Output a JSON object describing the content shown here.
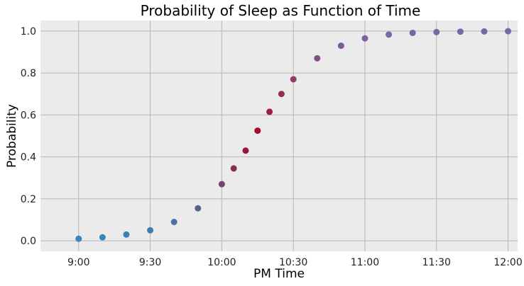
{
  "chart_data": {
    "type": "scatter",
    "title": "Probability of Sleep as Function of Time",
    "xlabel": "PM Time",
    "ylabel": "Probability",
    "x_unit": "minutes after 9:00 PM",
    "xlim": [
      -16,
      184
    ],
    "ylim": [
      -0.05,
      1.05
    ],
    "x_ticks": [
      {
        "value": 0,
        "label": "9:00"
      },
      {
        "value": 30,
        "label": "9:30"
      },
      {
        "value": 60,
        "label": "10:00"
      },
      {
        "value": 90,
        "label": "10:30"
      },
      {
        "value": 120,
        "label": "11:00"
      },
      {
        "value": 150,
        "label": "11:30"
      },
      {
        "value": 180,
        "label": "12:00"
      }
    ],
    "y_ticks": [
      {
        "value": 0.0,
        "label": "0.0"
      },
      {
        "value": 0.2,
        "label": "0.2"
      },
      {
        "value": 0.4,
        "label": "0.4"
      },
      {
        "value": 0.6,
        "label": "0.6"
      },
      {
        "value": 0.8,
        "label": "0.8"
      },
      {
        "value": 1.0,
        "label": "1.0"
      }
    ],
    "grid": true,
    "background": "#ebebeb",
    "colors": {
      "low": "#348abd",
      "mid": "#a60628",
      "high": "#7a68a6"
    },
    "series": [
      {
        "x": [
          0,
          10,
          20,
          30,
          40,
          50,
          60,
          65,
          70,
          75,
          80,
          85,
          90,
          100,
          110,
          120,
          130,
          140,
          150,
          160,
          170,
          180
        ],
        "y": [
          0.01,
          0.017,
          0.03,
          0.05,
          0.09,
          0.155,
          0.27,
          0.345,
          0.43,
          0.525,
          0.615,
          0.7,
          0.77,
          0.87,
          0.93,
          0.965,
          0.983,
          0.991,
          0.995,
          0.997,
          0.998,
          0.999
        ]
      }
    ]
  }
}
